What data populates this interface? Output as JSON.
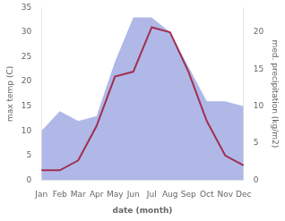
{
  "chart_data": {
    "type": "line",
    "xlabel": "date (month)",
    "ylabel": "max temp (C)",
    "y2label": "med. precipitation (kg/m2)",
    "categories": [
      "Jan",
      "Feb",
      "Mar",
      "Apr",
      "May",
      "Jun",
      "Jul",
      "Aug",
      "Sep",
      "Oct",
      "Nov",
      "Dec"
    ],
    "series": [
      {
        "type": "area",
        "color": "#b0b8e8",
        "values": [
          10,
          14,
          12,
          13,
          24,
          33,
          33,
          30,
          23,
          16,
          16,
          15
        ]
      },
      {
        "type": "line",
        "color": "#a03050",
        "values": [
          2,
          2,
          4,
          11,
          21,
          22,
          31,
          30,
          22,
          12,
          5,
          3
        ]
      }
    ],
    "ylim": [
      0,
      35
    ],
    "yticks": [
      0,
      5,
      10,
      15,
      20,
      25,
      30,
      35
    ],
    "y2lim": [
      0,
      23.33
    ],
    "y2ticks": [
      0,
      5,
      10,
      15,
      20
    ],
    "grid": false
  }
}
